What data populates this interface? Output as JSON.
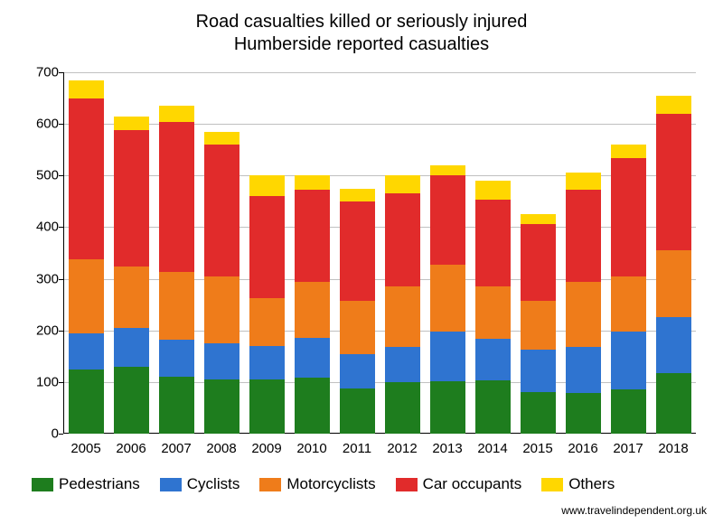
{
  "title_line1": "Road casualties killed or seriously injured",
  "title_line2": "Humberside reported casualties",
  "title_fontsize": 20,
  "label_fontsize": 15,
  "legend_fontsize": 17,
  "source_text": "www.travelindependent.org.uk",
  "background_color": "#ffffff",
  "grid_color": "#c0c0c0",
  "axis_color": "#000000",
  "chart": {
    "type": "stacked_bar",
    "ylim": [
      0,
      700
    ],
    "ytick_step": 100,
    "bar_width_ratio": 0.78,
    "categories": [
      "2005",
      "2006",
      "2007",
      "2008",
      "2009",
      "2010",
      "2011",
      "2012",
      "2013",
      "2014",
      "2015",
      "2016",
      "2017",
      "2018"
    ],
    "series": [
      {
        "name": "Pedestrians",
        "color": "#1e7d1e",
        "values": [
          125,
          130,
          110,
          105,
          105,
          108,
          88,
          100,
          102,
          103,
          80,
          78,
          85,
          118
        ]
      },
      {
        "name": "Cyclists",
        "color": "#2f74d0",
        "values": [
          70,
          75,
          72,
          70,
          65,
          78,
          66,
          68,
          96,
          80,
          82,
          90,
          113,
          108
        ]
      },
      {
        "name": "Motorcyclists",
        "color": "#ef7c1a",
        "values": [
          143,
          118,
          132,
          130,
          93,
          108,
          103,
          118,
          130,
          102,
          96,
          126,
          107,
          130
        ]
      },
      {
        "name": "Car occupants",
        "color": "#e12b2b",
        "values": [
          312,
          265,
          290,
          255,
          197,
          178,
          192,
          180,
          172,
          168,
          148,
          178,
          228,
          264
        ]
      },
      {
        "name": "Others",
        "color": "#ffd700",
        "values": [
          35,
          27,
          31,
          25,
          40,
          28,
          26,
          34,
          20,
          37,
          19,
          33,
          27,
          35
        ]
      }
    ]
  }
}
